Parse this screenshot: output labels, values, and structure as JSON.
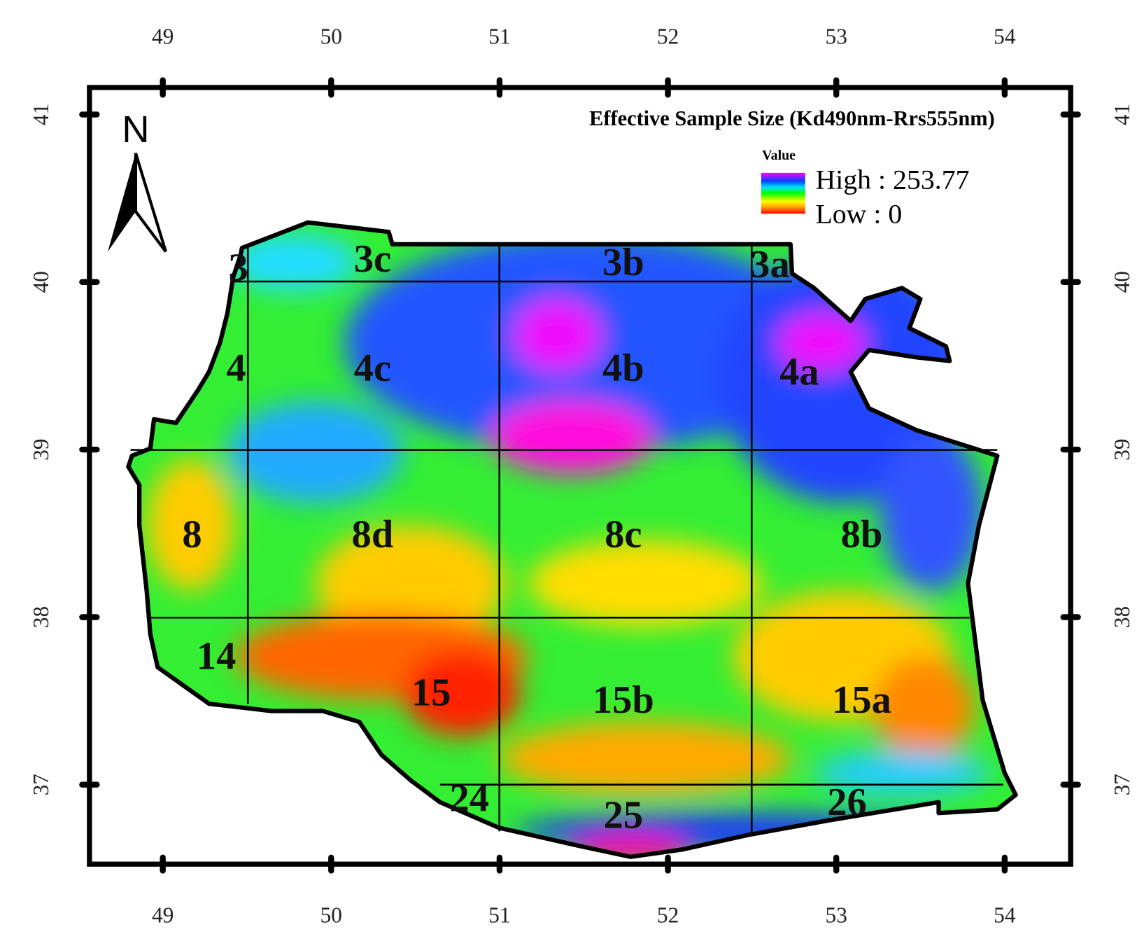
{
  "map": {
    "title": "Effective Sample Size (Kd490nm-Rrs555nm)",
    "north": "N",
    "legend": {
      "heading": "Value",
      "high": "High : 253.77",
      "low": "Low : 0"
    },
    "lon_ticks": [
      49,
      50,
      51,
      52,
      53,
      54
    ],
    "lat_ticks": [
      41,
      40,
      39,
      38,
      37
    ],
    "regions": [
      "3",
      "3c",
      "3b",
      "3a",
      "4",
      "4c",
      "4b",
      "4a",
      "8",
      "8d",
      "8c",
      "8b",
      "14",
      "15",
      "15b",
      "15a",
      "24",
      "25",
      "26"
    ]
  }
}
